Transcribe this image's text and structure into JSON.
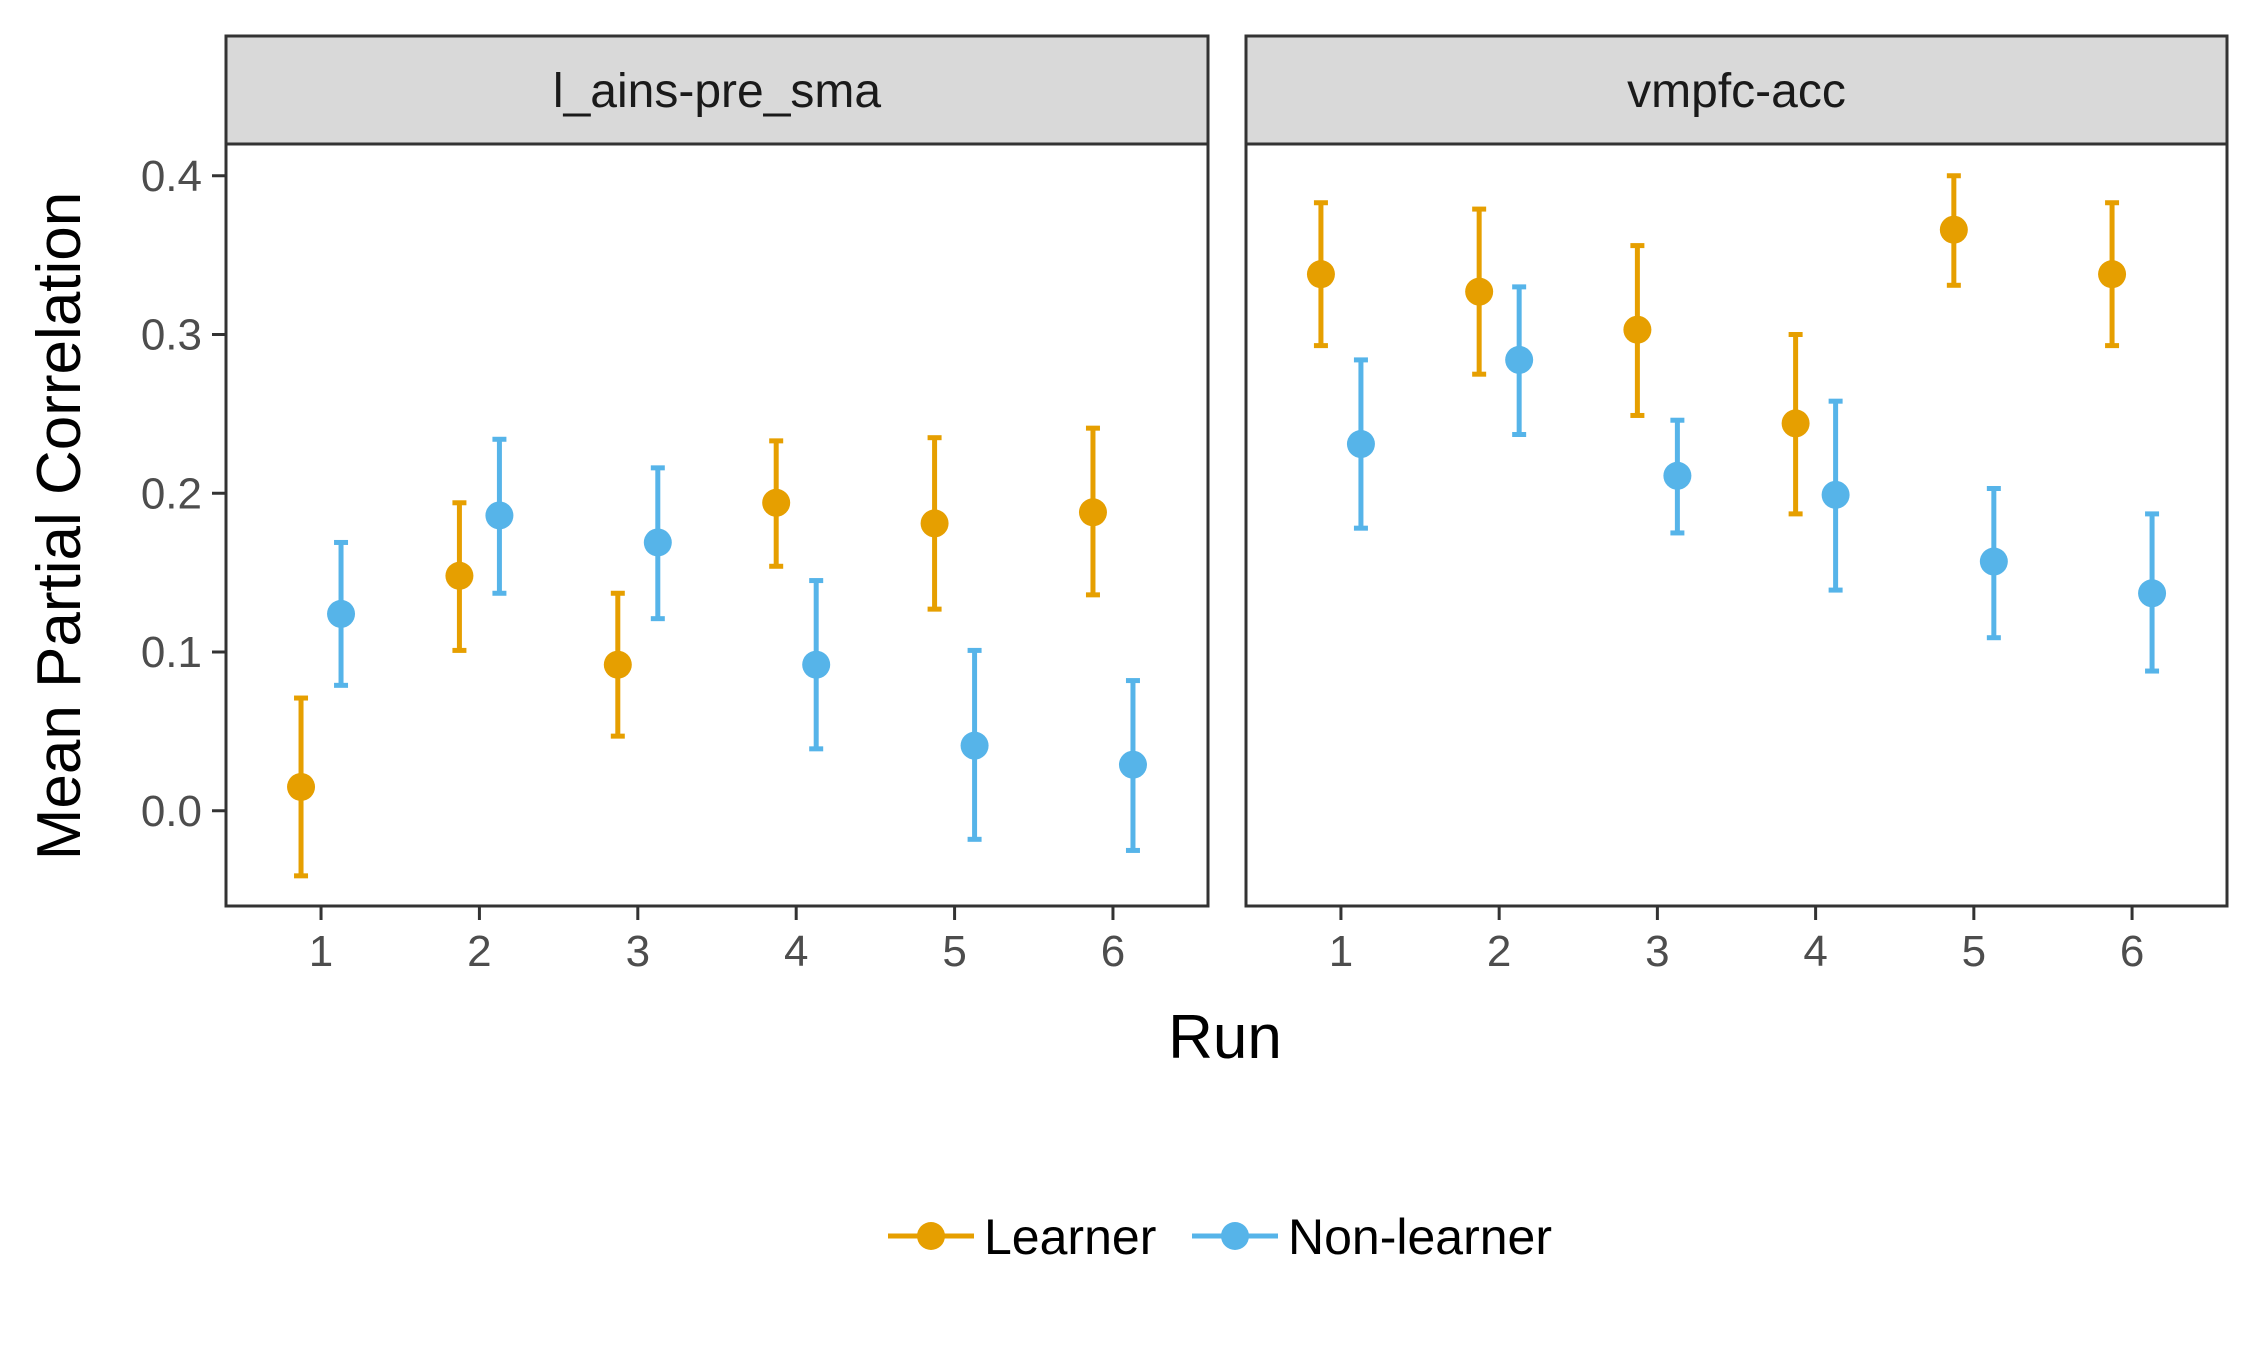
{
  "chart_data": {
    "type": "scatter",
    "subtype": "point-with-error-bars, faceted",
    "xlabel": "Run",
    "ylabel": "Mean Partial Correlation",
    "ylim": [
      -0.06,
      0.42
    ],
    "yticks": [
      "0.0",
      "0.1",
      "0.2",
      "0.3",
      "0.4"
    ],
    "ytick_values": [
      0.0,
      0.1,
      0.2,
      0.3,
      0.4
    ],
    "xticks": [
      "1",
      "2",
      "3",
      "4",
      "5",
      "6"
    ],
    "grid": false,
    "legend": {
      "placement": "bottom",
      "entries": [
        "Learner",
        "Non-learner"
      ]
    },
    "colors": {
      "Learner": "#E69F00",
      "Non-learner": "#56B4E9"
    },
    "facets": [
      {
        "title": "l_ains-pre_sma",
        "series": [
          {
            "name": "Learner",
            "x": [
              1,
              2,
              3,
              4,
              5,
              6
            ],
            "y": [
              0.015,
              0.148,
              0.092,
              0.194,
              0.181,
              0.188
            ],
            "ymin": [
              -0.041,
              0.101,
              0.047,
              0.154,
              0.127,
              0.136
            ],
            "ymax": [
              0.071,
              0.194,
              0.137,
              0.233,
              0.235,
              0.241
            ]
          },
          {
            "name": "Non-learner",
            "x": [
              1,
              2,
              3,
              4,
              5,
              6
            ],
            "y": [
              0.124,
              0.186,
              0.169,
              0.092,
              0.041,
              0.029
            ],
            "ymin": [
              0.079,
              0.137,
              0.121,
              0.039,
              -0.018,
              -0.025
            ],
            "ymax": [
              0.169,
              0.234,
              0.216,
              0.145,
              0.101,
              0.082
            ]
          }
        ]
      },
      {
        "title": "vmpfc-acc",
        "series": [
          {
            "name": "Learner",
            "x": [
              1,
              2,
              3,
              4,
              5,
              6
            ],
            "y": [
              0.338,
              0.327,
              0.303,
              0.244,
              0.366,
              0.338
            ],
            "ymin": [
              0.293,
              0.275,
              0.249,
              0.187,
              0.331,
              0.293
            ],
            "ymax": [
              0.383,
              0.379,
              0.356,
              0.3,
              0.4,
              0.383
            ]
          },
          {
            "name": "Non-learner",
            "x": [
              1,
              2,
              3,
              4,
              5,
              6
            ],
            "y": [
              0.231,
              0.284,
              0.211,
              0.199,
              0.157,
              0.137
            ],
            "ymin": [
              0.178,
              0.237,
              0.175,
              0.139,
              0.109,
              0.088
            ],
            "ymax": [
              0.284,
              0.33,
              0.246,
              0.258,
              0.203,
              0.187
            ]
          }
        ]
      }
    ]
  }
}
